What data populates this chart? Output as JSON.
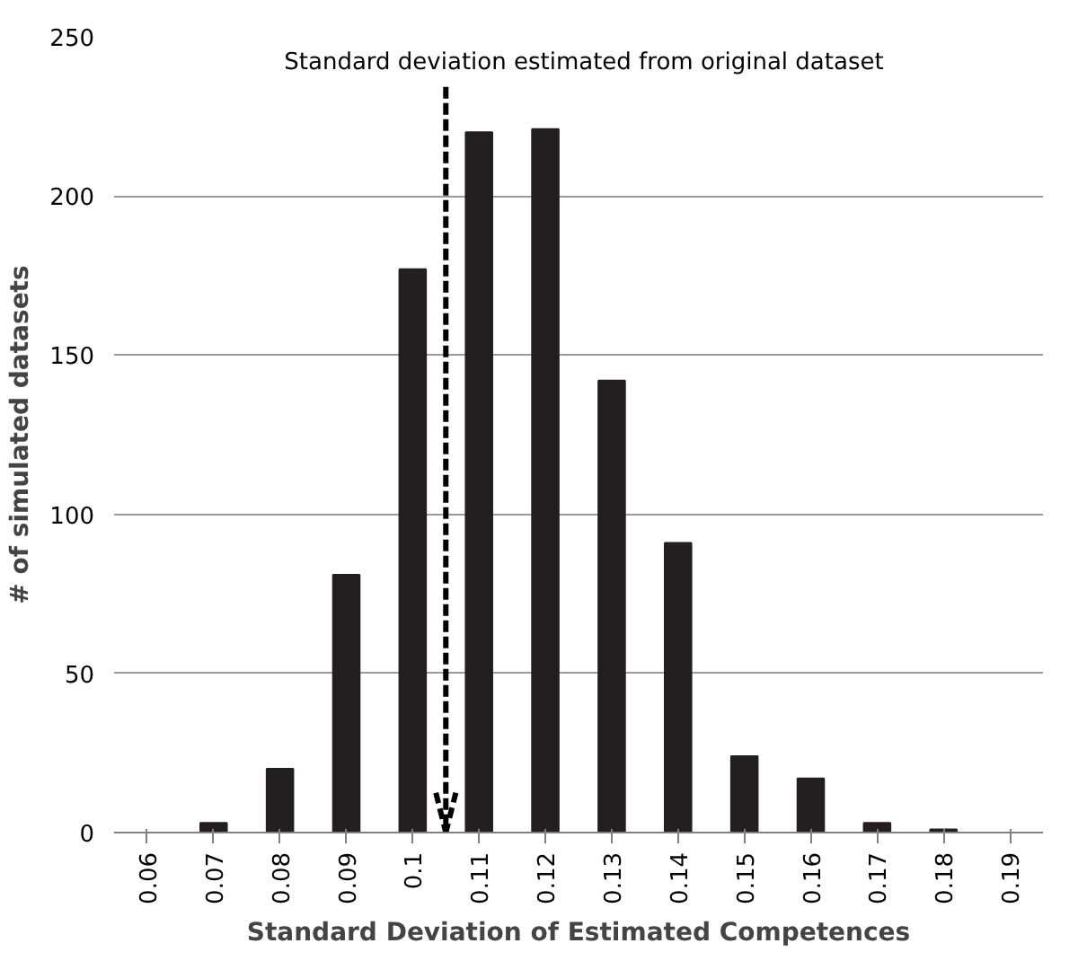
{
  "chart_data": {
    "type": "bar",
    "xlabel": "Standard Deviation of Estimated Competences",
    "ylabel": "# of simulated datasets",
    "x": [
      0.06,
      0.07,
      0.08,
      0.09,
      0.1,
      0.11,
      0.12,
      0.13,
      0.14,
      0.15,
      0.16,
      0.17,
      0.18,
      0.19
    ],
    "values": [
      0,
      3,
      20,
      81,
      177,
      220,
      221,
      142,
      91,
      24,
      17,
      3,
      1,
      0
    ],
    "color": "#231f20",
    "xlim": [
      0.055,
      0.195
    ],
    "xticks": [
      0.06,
      0.07,
      0.08,
      0.09,
      0.1,
      0.11,
      0.12,
      0.13,
      0.14,
      0.15,
      0.16,
      0.17,
      0.18,
      0.19
    ],
    "ylim": [
      0,
      250
    ],
    "yticks": [
      0,
      50,
      100,
      150,
      200,
      250
    ],
    "grid": "y",
    "ref_lines": [
      {
        "axis": "x",
        "value": 0.105,
        "label": "Standard deviation estimated from original dataset",
        "line_style": "dashed",
        "color": "#000000"
      }
    ]
  }
}
